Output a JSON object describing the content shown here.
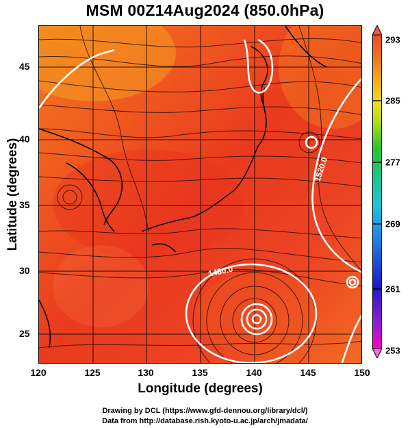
{
  "title": "MSM 00Z14Aug2024 (850.0hPa)",
  "axes": {
    "xlabel": "Longitude (degrees)",
    "ylabel": "Latitude  (degrees)",
    "xticks": [
      "120",
      "125",
      "130",
      "135",
      "140",
      "145",
      "150"
    ],
    "yticks": [
      "45",
      "40",
      "35",
      "30",
      "25"
    ]
  },
  "contour_labels": [
    "1480.0",
    "1520.0"
  ],
  "colorbar": {
    "ticks": [
      "293",
      "285",
      "277",
      "269",
      "261",
      "253"
    ],
    "colors": [
      "#ff00c8",
      "#8a1fd6",
      "#1a1ad0",
      "#1a8ae8",
      "#18c8d8",
      "#18c87a",
      "#28c828",
      "#aadd18",
      "#f0e018",
      "#f8a818",
      "#f26a1a",
      "#f04a26"
    ]
  },
  "credits": {
    "line1": "Drawing by DCL (https://www.gfd-dennou.org/library/dcl/)",
    "line2": "Data from http://database.rish.kyoto-u.ac.jp/arch/jmadata/"
  }
}
